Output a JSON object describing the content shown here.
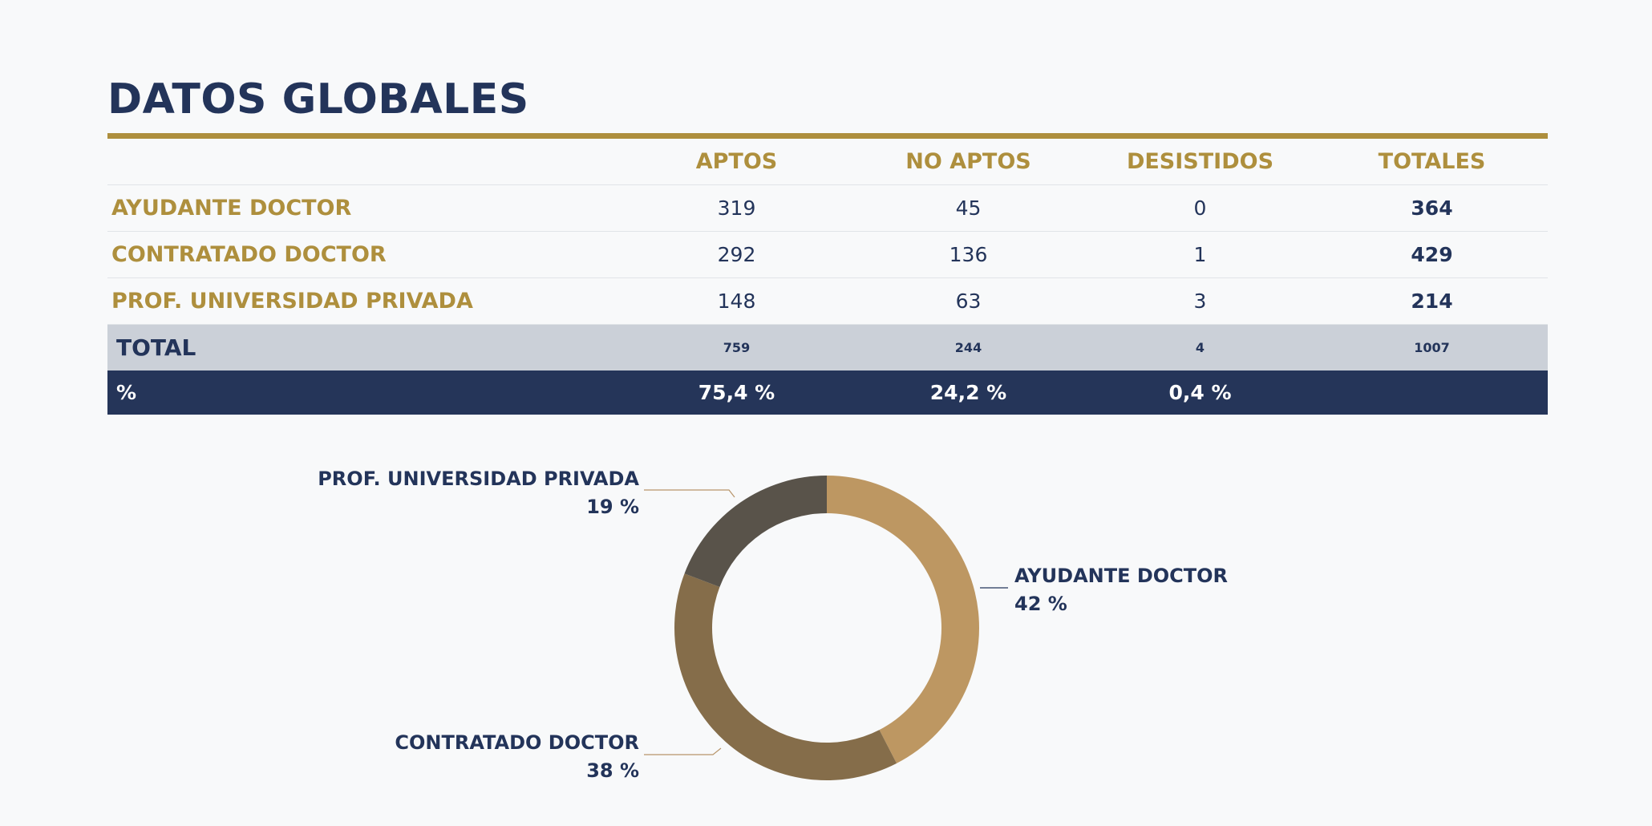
{
  "title": "DATOS GLOBALES",
  "table": {
    "headers": [
      "",
      "APTOS",
      "NO APTOS",
      "DESISTIDOS",
      "TOTALES"
    ],
    "rows": [
      {
        "label": "AYUDANTE DOCTOR",
        "aptos": "319",
        "no_aptos": "45",
        "desistidos": "0",
        "totales": "364"
      },
      {
        "label": "CONTRATADO DOCTOR",
        "aptos": "292",
        "no_aptos": "136",
        "desistidos": "1",
        "totales": "429"
      },
      {
        "label": "PROF. UNIVERSIDAD PRIVADA",
        "aptos": "148",
        "no_aptos": "63",
        "desistidos": "3",
        "totales": "214"
      }
    ],
    "total": {
      "label": "TOTAL",
      "aptos": "759",
      "no_aptos": "244",
      "desistidos": "4",
      "totales": "1007"
    },
    "percent": {
      "label": "%",
      "aptos": "75,4 %",
      "no_aptos": "24,2 %",
      "desistidos": "0,4 %",
      "totales": ""
    }
  },
  "colors": {
    "navy": "#23345a",
    "gold": "#ae8f3d",
    "ayudante": "#bd9762",
    "contratado": "#856d4a",
    "prof": "#59534a",
    "leader": "#b8956a"
  },
  "chart_data": {
    "type": "pie",
    "donut": true,
    "slices": [
      {
        "name": "AYUDANTE DOCTOR",
        "value": 42,
        "label": "42 %",
        "color": "#bd9762"
      },
      {
        "name": "CONTRATADO DOCTOR",
        "value": 38,
        "label": "38 %",
        "color": "#856d4a"
      },
      {
        "name": "PROF. UNIVERSIDAD PRIVADA",
        "value": 19,
        "label": "19 %",
        "color": "#59534a"
      }
    ]
  }
}
